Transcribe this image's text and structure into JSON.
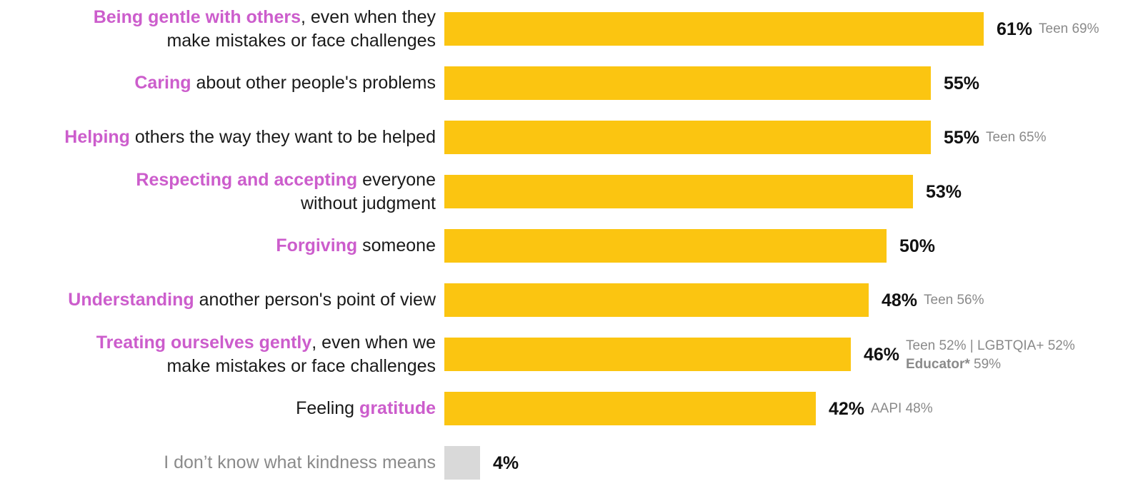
{
  "chart_data": {
    "type": "bar",
    "orientation": "horizontal",
    "value_max": 61,
    "colors": {
      "bar": "#fbc511",
      "bar_muted": "#d9d9d9",
      "highlight": "#cc5dcc",
      "note": "#8a8a8a"
    },
    "rows": [
      {
        "label": {
          "pre": "",
          "hl": "Being gentle with others",
          "post": ", even when they",
          "line2": "make mistakes or face challenges"
        },
        "value": 61,
        "value_label": "61%",
        "note": "Teen 69%",
        "note2": null
      },
      {
        "label": {
          "pre": "",
          "hl": "Caring",
          "post": " about other people's problems",
          "line2": ""
        },
        "value": 55,
        "value_label": "55%",
        "note": null,
        "note2": null
      },
      {
        "label": {
          "pre": "",
          "hl": "Helping",
          "post": " others the way they want to be helped",
          "line2": ""
        },
        "value": 55,
        "value_label": "55%",
        "note": "Teen 65%",
        "note2": null
      },
      {
        "label": {
          "pre": "",
          "hl": "Respecting and accepting",
          "post": " everyone",
          "line2": "without judgment"
        },
        "value": 53,
        "value_label": "53%",
        "note": null,
        "note2": null
      },
      {
        "label": {
          "pre": "",
          "hl": "Forgiving",
          "post": " someone",
          "line2": ""
        },
        "value": 50,
        "value_label": "50%",
        "note": null,
        "note2": null
      },
      {
        "label": {
          "pre": "",
          "hl": "Understanding",
          "post": " another person's point of view",
          "line2": ""
        },
        "value": 48,
        "value_label": "48%",
        "note": "Teen 56%",
        "note2": null
      },
      {
        "label": {
          "pre": "",
          "hl": "Treating ourselves gently",
          "post": ", even when we",
          "line2": "make mistakes or face challenges"
        },
        "value": 46,
        "value_label": "46%",
        "note": "Teen 52% | LGBTQIA+ 52%",
        "note2": {
          "bold": "Educator*",
          "rest": " 59%"
        }
      },
      {
        "label": {
          "pre": "Feeling ",
          "hl": "gratitude",
          "post": "",
          "line2": ""
        },
        "value": 42,
        "value_label": "42%",
        "note": "AAPI 48%",
        "note2": null
      },
      {
        "label": {
          "pre": "I don’t know what kindness means",
          "hl": "",
          "post": "",
          "line2": ""
        },
        "value": 4,
        "value_label": "4%",
        "note": null,
        "note2": null,
        "muted": true
      }
    ]
  }
}
